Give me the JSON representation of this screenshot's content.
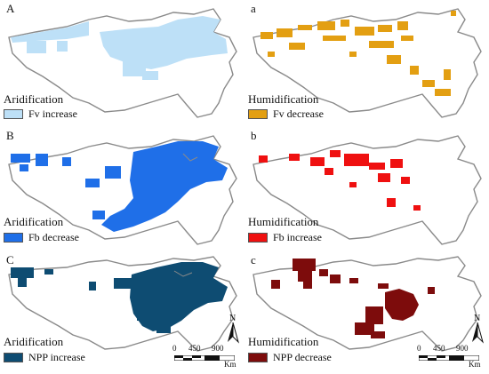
{
  "panels": [
    {
      "letter": "A",
      "category": "Aridification",
      "legend": "Fv increase",
      "color": "#bde0f7"
    },
    {
      "letter": "a",
      "category": "Humidification",
      "legend": "Fv decrease",
      "color": "#e39f12"
    },
    {
      "letter": "B",
      "category": "Aridification",
      "legend": "Fb decrease",
      "color": "#1f6fe8"
    },
    {
      "letter": "b",
      "category": "Humidification",
      "legend": "Fb increase",
      "color": "#ef1010"
    },
    {
      "letter": "C",
      "category": "Aridification",
      "legend": "NPP increase",
      "color": "#0e4c72"
    },
    {
      "letter": "c",
      "category": "Humidification",
      "legend": "NPP decrease",
      "color": "#7d0c0c"
    }
  ],
  "north_label": "N",
  "scale_bar": {
    "ticks": [
      "0",
      "450",
      "900"
    ],
    "unit": "Km"
  },
  "colors": {
    "outline": "#8a8a8a",
    "background": "#ffffff"
  }
}
